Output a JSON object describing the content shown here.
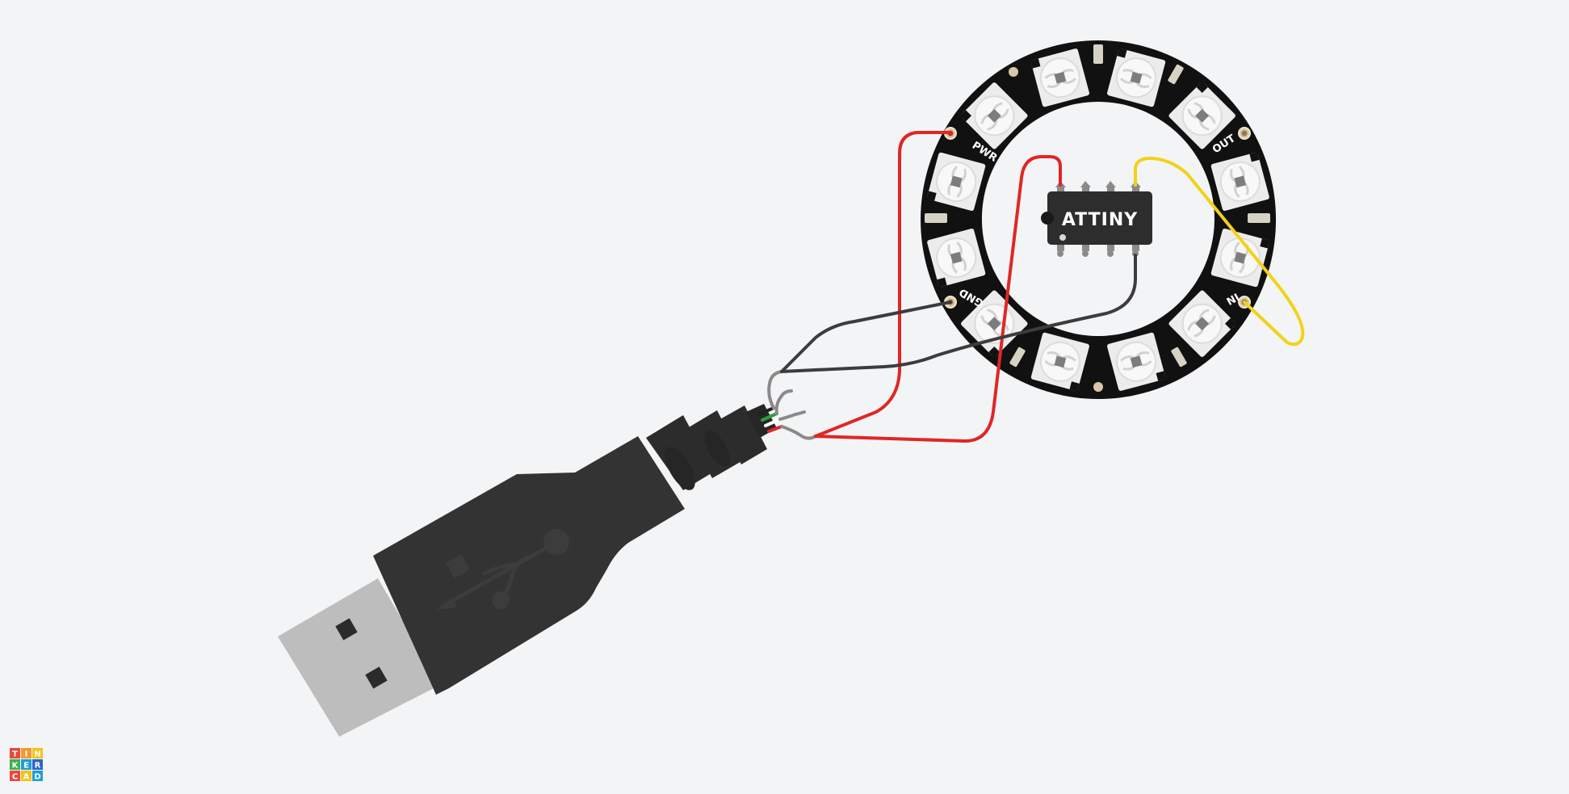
{
  "circuit": {
    "chip": {
      "label": "ATTINY"
    },
    "ring": {
      "pin_pwr": "PWR",
      "pin_out": "OUT",
      "pin_gnd": "GND",
      "pin_in": "IN",
      "led_count": 12
    },
    "usb": {
      "name": "usb-connector"
    },
    "wire_colors": {
      "power": "#e02626",
      "ground": "#3c3c3c",
      "data": "#f2d219",
      "shield": "#8a8a8a",
      "green": "#2e9e3c"
    }
  },
  "branding": {
    "logo_letters": [
      "T",
      "I",
      "N",
      "K",
      "E",
      "R",
      "C",
      "A",
      "D"
    ],
    "logo_colors": [
      "#e8483c",
      "#f39a2b",
      "#f2c318",
      "#3fb04d",
      "#1f9ed8",
      "#2a66c9",
      "#e8483c",
      "#f2c318",
      "#1f9ed8"
    ]
  }
}
